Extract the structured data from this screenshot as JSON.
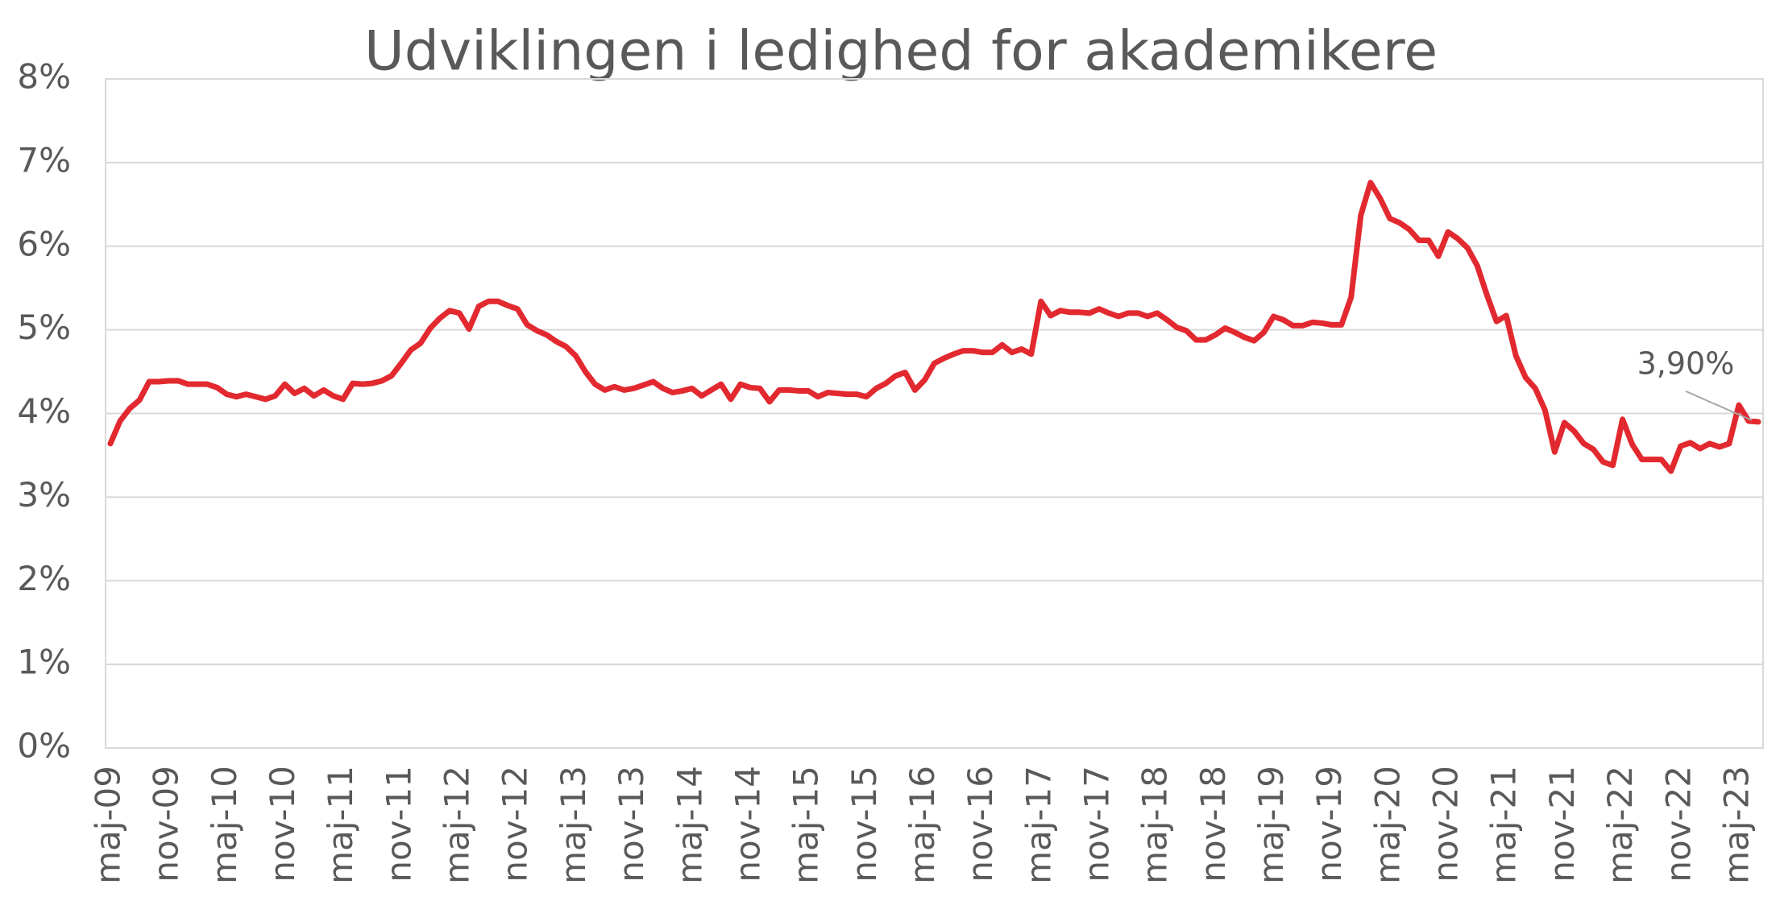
{
  "chart_data": {
    "type": "line",
    "title": "Udviklingen i ledighed for akademikere",
    "categories": [
      "maj-09",
      null,
      null,
      null,
      null,
      null,
      "nov-09",
      null,
      null,
      null,
      null,
      null,
      "maj-10",
      null,
      null,
      null,
      null,
      null,
      "nov-10",
      null,
      null,
      null,
      null,
      null,
      "maj-11",
      null,
      null,
      null,
      null,
      null,
      "nov-11",
      null,
      null,
      null,
      null,
      null,
      "maj-12",
      null,
      null,
      null,
      null,
      null,
      "nov-12",
      null,
      null,
      null,
      null,
      null,
      "maj-13",
      null,
      null,
      null,
      null,
      null,
      "nov-13",
      null,
      null,
      null,
      null,
      null,
      "maj-14",
      null,
      null,
      null,
      null,
      null,
      "nov-14",
      null,
      null,
      null,
      null,
      null,
      "maj-15",
      null,
      null,
      null,
      null,
      null,
      "nov-15",
      null,
      null,
      null,
      null,
      null,
      "maj-16",
      null,
      null,
      null,
      null,
      null,
      "nov-16",
      null,
      null,
      null,
      null,
      null,
      "maj-17",
      null,
      null,
      null,
      null,
      null,
      "nov-17",
      null,
      null,
      null,
      null,
      null,
      "maj-18",
      null,
      null,
      null,
      null,
      null,
      "nov-18",
      null,
      null,
      null,
      null,
      null,
      "maj-19",
      null,
      null,
      null,
      null,
      null,
      "nov-19",
      null,
      null,
      null,
      null,
      null,
      "maj-20",
      null,
      null,
      null,
      null,
      null,
      "nov-20",
      null,
      null,
      null,
      null,
      null,
      "maj-21",
      null,
      null,
      null,
      null,
      null,
      "nov-21",
      null,
      null,
      null,
      null,
      null,
      "maj-22",
      null,
      null,
      null,
      null,
      null,
      "nov-22",
      null,
      null,
      null,
      null,
      null,
      "maj-23",
      null,
      null
    ],
    "values": [
      3.64,
      3.91,
      4.06,
      4.16,
      4.38,
      4.38,
      4.39,
      4.39,
      4.35,
      4.35,
      4.35,
      4.31,
      4.23,
      4.2,
      4.23,
      4.2,
      4.17,
      4.21,
      4.35,
      4.24,
      4.3,
      4.21,
      4.28,
      4.21,
      4.17,
      4.36,
      4.35,
      4.36,
      4.39,
      4.45,
      4.6,
      4.76,
      4.84,
      5.02,
      5.14,
      5.23,
      5.2,
      5.01,
      5.28,
      5.34,
      5.34,
      5.29,
      5.25,
      5.06,
      4.99,
      4.94,
      4.86,
      4.8,
      4.69,
      4.5,
      4.35,
      4.28,
      4.32,
      4.28,
      4.3,
      4.34,
      4.38,
      4.3,
      4.25,
      4.27,
      4.3,
      4.21,
      4.28,
      4.35,
      4.17,
      4.35,
      4.31,
      4.3,
      4.14,
      4.28,
      4.28,
      4.27,
      4.27,
      4.2,
      4.25,
      4.24,
      4.23,
      4.23,
      4.2,
      4.3,
      4.36,
      4.45,
      4.49,
      4.28,
      4.4,
      4.6,
      4.66,
      4.71,
      4.75,
      4.75,
      4.73,
      4.73,
      4.82,
      4.73,
      4.77,
      4.71,
      5.34,
      5.17,
      5.23,
      5.21,
      5.21,
      5.2,
      5.25,
      5.2,
      5.16,
      5.2,
      5.2,
      5.16,
      5.2,
      5.12,
      5.03,
      4.99,
      4.88,
      4.88,
      4.94,
      5.02,
      4.97,
      4.91,
      4.87,
      4.97,
      5.16,
      5.12,
      5.05,
      5.05,
      5.09,
      5.08,
      5.06,
      5.06,
      5.39,
      6.37,
      6.76,
      6.57,
      6.33,
      6.28,
      6.2,
      6.07,
      6.07,
      5.88,
      6.17,
      6.09,
      5.98,
      5.77,
      5.42,
      5.1,
      5.17,
      4.69,
      4.43,
      4.3,
      4.04,
      3.54,
      3.89,
      3.79,
      3.64,
      3.57,
      3.42,
      3.38,
      3.93,
      3.63,
      3.45,
      3.45,
      3.45,
      3.31,
      3.61,
      3.65,
      3.58,
      3.64,
      3.6,
      3.64,
      4.1,
      3.91,
      3.9
    ],
    "value_labels": [
      null,
      null,
      null,
      null,
      null,
      null,
      null,
      null,
      null,
      null,
      null,
      null,
      null,
      null,
      null,
      null,
      null,
      null,
      null,
      null,
      null,
      null,
      null,
      null,
      null,
      null,
      null,
      null,
      null,
      null,
      null,
      null,
      null,
      null,
      null,
      null,
      null,
      null,
      null,
      null,
      null,
      null,
      null,
      null,
      null,
      null,
      null,
      null,
      null,
      null,
      null,
      null,
      null,
      null,
      null,
      null,
      null,
      null,
      null,
      null,
      null,
      null,
      null,
      null,
      null,
      null,
      null,
      null,
      null,
      null,
      null,
      null,
      null,
      null,
      null,
      null,
      null,
      null,
      null,
      null,
      null,
      null,
      null,
      null,
      null,
      null,
      null,
      null,
      null,
      null,
      null,
      null,
      null,
      null,
      null,
      null,
      null,
      null,
      null,
      null,
      null,
      null,
      null,
      null,
      null,
      null,
      null,
      null,
      null,
      null,
      null,
      null,
      null,
      null,
      null,
      null,
      null,
      null,
      null,
      null,
      null,
      null,
      null,
      null,
      null,
      null,
      null,
      null,
      null,
      null,
      null,
      null,
      null,
      null,
      null,
      null,
      null,
      null,
      null,
      null,
      null,
      null,
      null,
      null,
      null,
      null,
      null,
      null,
      null,
      null,
      null,
      null,
      null,
      null,
      null,
      null,
      null,
      null,
      null,
      null,
      null,
      null,
      null,
      null,
      null,
      null,
      null,
      null,
      null,
      null,
      "3,90%"
    ],
    "color": "#e2292f",
    "ylim": [
      0,
      8
    ],
    "yticks": [
      {
        "value": 0,
        "label": "0%"
      },
      {
        "value": 1,
        "label": "1%"
      },
      {
        "value": 2,
        "label": "2%"
      },
      {
        "value": 3,
        "label": "3%"
      },
      {
        "value": 4,
        "label": "4%"
      },
      {
        "value": 5,
        "label": "5%"
      },
      {
        "value": 6,
        "label": "6%"
      },
      {
        "value": 7,
        "label": "7%"
      },
      {
        "value": 8,
        "label": "8%"
      }
    ],
    "grid": true
  }
}
